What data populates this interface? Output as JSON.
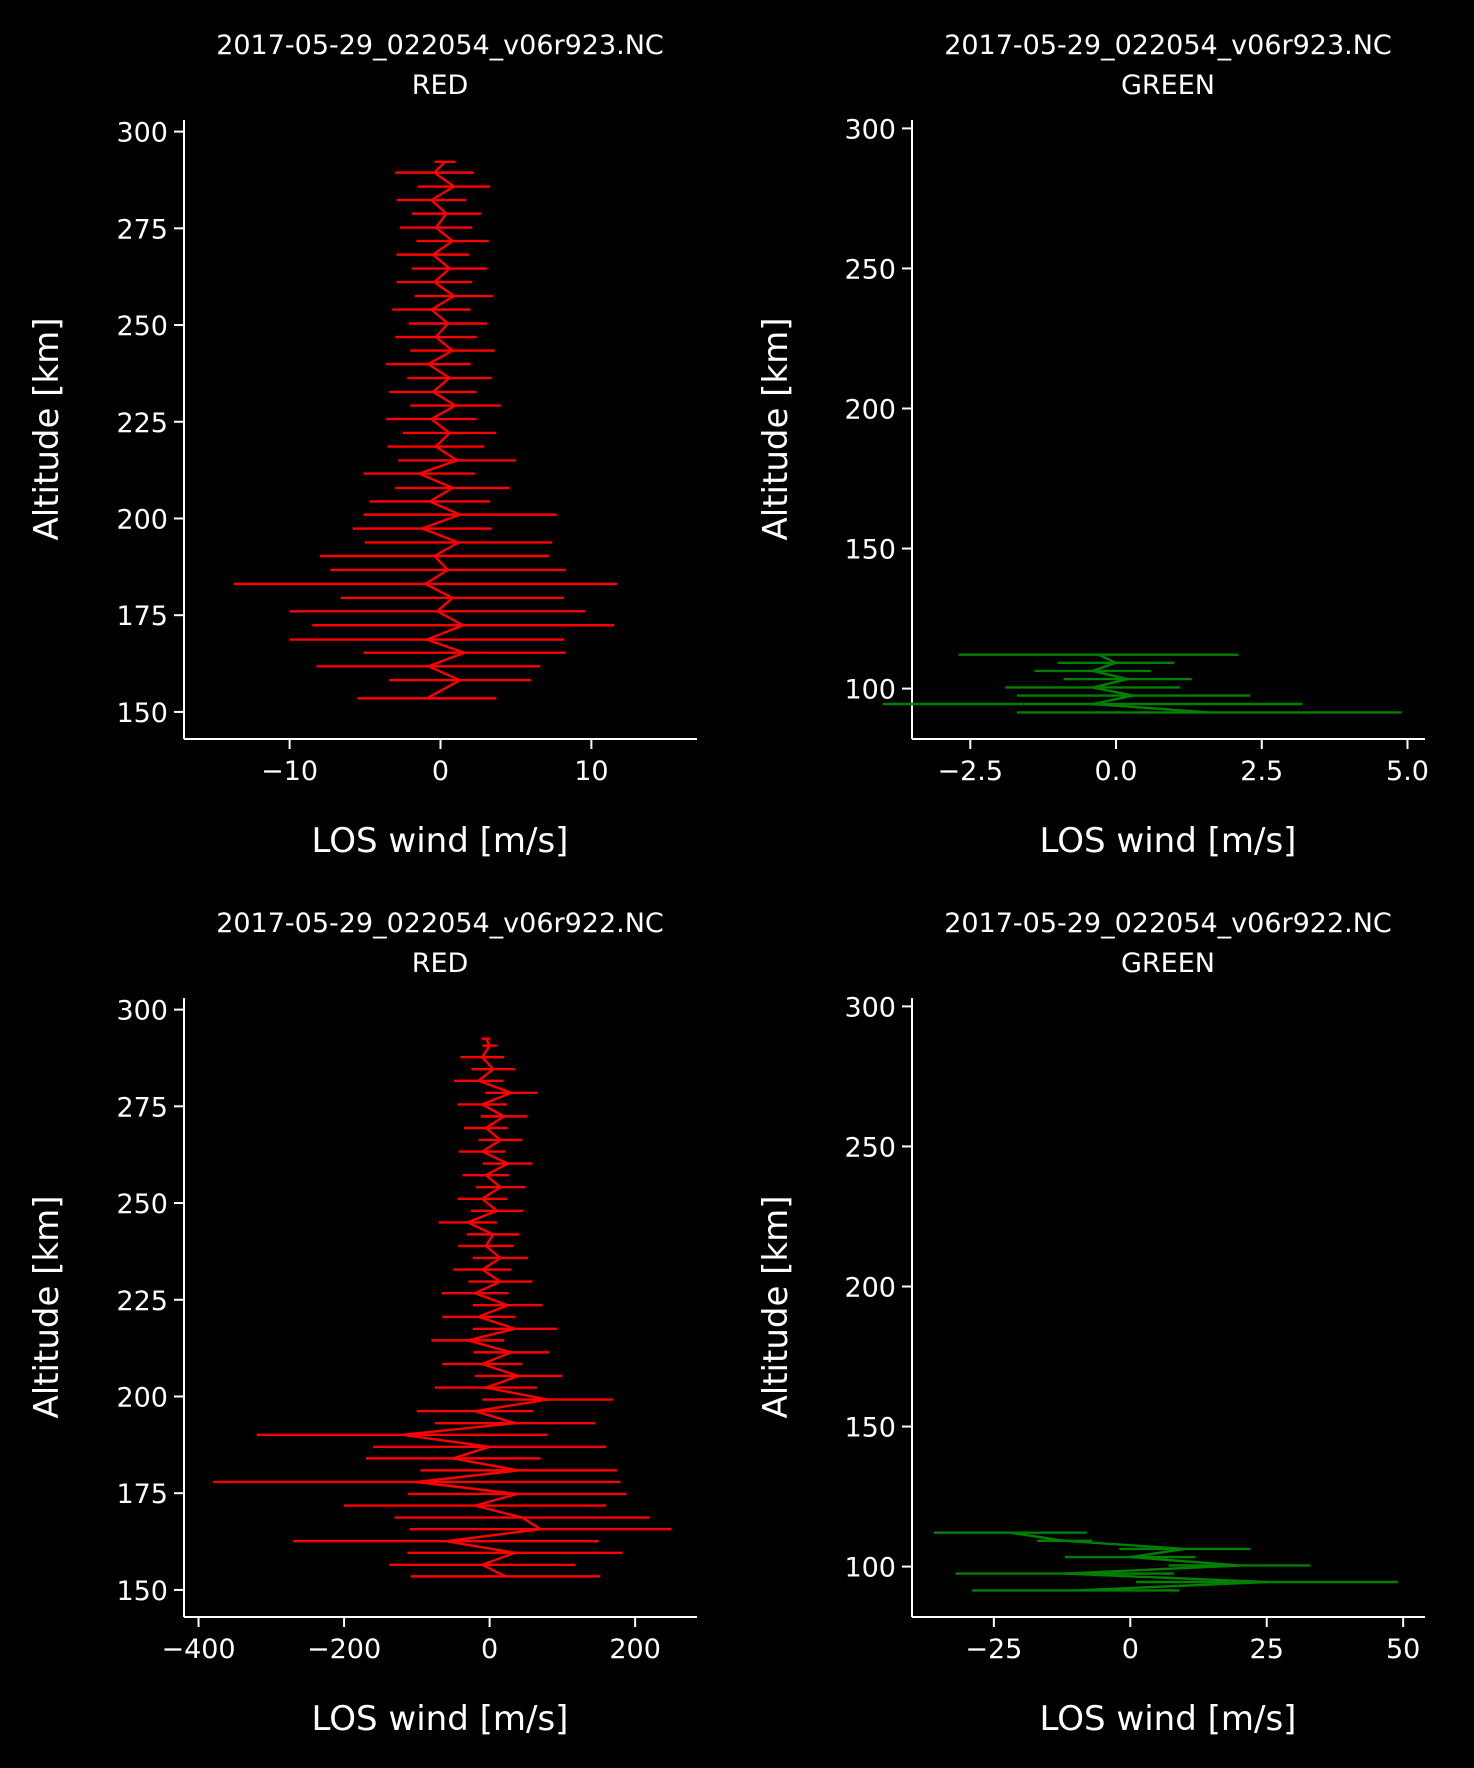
{
  "colors": {
    "background": "#000000",
    "text": "#ffffff",
    "RED": "#ff0000",
    "GREEN": "#008000"
  },
  "chart_data": [
    {
      "type": "line",
      "title": "2017-05-29_022054_v06r923.NC",
      "subtitle": "RED",
      "xlabel": "LOS wind [m/s]",
      "ylabel": "Altitude [km]",
      "xlim": [
        -17,
        17
      ],
      "ylim": [
        143,
        303
      ],
      "xticks": [
        -10,
        0,
        10
      ],
      "yticks": [
        150,
        175,
        200,
        225,
        250,
        275,
        300
      ],
      "xtick_labels": [
        "−10",
        "0",
        "10"
      ],
      "color": "#ff0000",
      "errorbars": true,
      "points": [
        [
          -0.9,
          153.5,
          4.6
        ],
        [
          1.3,
          158.2,
          4.7
        ],
        [
          -0.8,
          161.8,
          7.4
        ],
        [
          1.6,
          165.3,
          6.7
        ],
        [
          -0.9,
          168.7,
          9.1
        ],
        [
          1.5,
          172.4,
          10.0
        ],
        [
          -0.2,
          176.0,
          9.8
        ],
        [
          0.8,
          179.5,
          7.4
        ],
        [
          -1.0,
          183.1,
          12.7
        ],
        [
          0.5,
          186.7,
          7.8
        ],
        [
          -0.4,
          190.3,
          7.6
        ],
        [
          1.2,
          193.8,
          6.2
        ],
        [
          -1.2,
          197.4,
          4.6
        ],
        [
          1.3,
          201.0,
          6.4
        ],
        [
          -0.7,
          204.4,
          4.0
        ],
        [
          0.8,
          207.9,
          3.8
        ],
        [
          -1.4,
          211.6,
          3.7
        ],
        [
          1.1,
          215.0,
          3.9
        ],
        [
          -0.3,
          218.6,
          3.2
        ],
        [
          0.6,
          222.1,
          3.1
        ],
        [
          -0.6,
          225.7,
          3.0
        ],
        [
          1.0,
          229.2,
          3.0
        ],
        [
          -0.5,
          232.7,
          2.9
        ],
        [
          0.6,
          236.3,
          2.8
        ],
        [
          -0.8,
          239.9,
          2.8
        ],
        [
          0.8,
          243.4,
          2.8
        ],
        [
          -0.3,
          246.9,
          2.7
        ],
        [
          0.5,
          250.4,
          2.6
        ],
        [
          -0.6,
          254.0,
          2.6
        ],
        [
          0.9,
          257.5,
          2.6
        ],
        [
          -0.4,
          261.1,
          2.5
        ],
        [
          0.6,
          264.6,
          2.5
        ],
        [
          -0.5,
          268.2,
          2.4
        ],
        [
          0.8,
          271.7,
          2.4
        ],
        [
          -0.3,
          275.2,
          2.4
        ],
        [
          0.4,
          278.8,
          2.3
        ],
        [
          -0.6,
          282.3,
          2.3
        ],
        [
          0.9,
          285.8,
          2.4
        ],
        [
          -0.4,
          289.4,
          2.6
        ],
        [
          0.3,
          292.2,
          0.7
        ]
      ]
    },
    {
      "type": "line",
      "title": "2017-05-29_022054_v06r923.NC",
      "subtitle": "GREEN",
      "xlabel": "LOS wind [m/s]",
      "ylabel": "Altitude [km]",
      "xlim": [
        -3.5,
        5.3
      ],
      "ylim": [
        82,
        303
      ],
      "xticks": [
        -2.5,
        0.0,
        2.5,
        5.0
      ],
      "yticks": [
        100,
        150,
        200,
        250,
        300
      ],
      "xtick_labels": [
        "−2.5",
        "0.0",
        "2.5",
        "5.0"
      ],
      "color": "#008000",
      "errorbars": true,
      "points": [
        [
          1.6,
          91.5,
          3.3
        ],
        [
          -0.4,
          94.5,
          3.6
        ],
        [
          0.3,
          97.5,
          2.0
        ],
        [
          -0.4,
          100.4,
          1.5
        ],
        [
          0.2,
          103.4,
          1.1
        ],
        [
          -0.4,
          106.3,
          1.0
        ],
        [
          0.0,
          109.2,
          1.0
        ],
        [
          -0.3,
          112.1,
          2.4
        ]
      ]
    },
    {
      "type": "line",
      "title": "2017-05-29_022054_v06r922.NC",
      "subtitle": "RED",
      "xlabel": "LOS wind [m/s]",
      "ylabel": "Altitude [km]",
      "xlim": [
        -420,
        285
      ],
      "ylim": [
        143,
        303
      ],
      "xticks": [
        -400,
        -200,
        0,
        200
      ],
      "yticks": [
        150,
        175,
        200,
        225,
        250,
        275,
        300
      ],
      "xtick_labels": [
        "−400",
        "−200",
        "0",
        "200"
      ],
      "color": "#ff0000",
      "errorbars": true,
      "points": [
        [
          22,
          153.5,
          130
        ],
        [
          -10,
          156.5,
          128
        ],
        [
          35,
          159.6,
          148
        ],
        [
          -60,
          162.6,
          210
        ],
        [
          70,
          165.7,
          180
        ],
        [
          45,
          168.7,
          175
        ],
        [
          -20,
          171.8,
          180
        ],
        [
          38,
          174.8,
          150
        ],
        [
          -100,
          177.9,
          280
        ],
        [
          40,
          180.9,
          135
        ],
        [
          -50,
          184.0,
          120
        ],
        [
          0,
          187.0,
          160
        ],
        [
          -120,
          190.1,
          200
        ],
        [
          35,
          193.1,
          110
        ],
        [
          -20,
          196.2,
          80
        ],
        [
          80,
          199.2,
          90
        ],
        [
          -5,
          202.3,
          70
        ],
        [
          40,
          205.3,
          60
        ],
        [
          -10,
          208.4,
          55
        ],
        [
          30,
          211.4,
          52
        ],
        [
          -30,
          214.5,
          50
        ],
        [
          35,
          217.5,
          58
        ],
        [
          -15,
          220.6,
          50
        ],
        [
          25,
          223.6,
          48
        ],
        [
          -20,
          226.7,
          46
        ],
        [
          15,
          229.7,
          44
        ],
        [
          -10,
          232.8,
          40
        ],
        [
          15,
          235.8,
          38
        ],
        [
          -5,
          238.9,
          38
        ],
        [
          5,
          241.9,
          36
        ],
        [
          -30,
          245.0,
          40
        ],
        [
          10,
          248.0,
          36
        ],
        [
          -10,
          251.1,
          34
        ],
        [
          15,
          254.1,
          34
        ],
        [
          -5,
          257.2,
          32
        ],
        [
          25,
          260.2,
          34
        ],
        [
          -10,
          263.3,
          32
        ],
        [
          15,
          266.3,
          30
        ],
        [
          -5,
          269.4,
          30
        ],
        [
          20,
          272.4,
          32
        ],
        [
          -10,
          275.5,
          34
        ],
        [
          30,
          278.5,
          36
        ],
        [
          -15,
          281.6,
          34
        ],
        [
          5,
          284.6,
          30
        ],
        [
          -10,
          287.7,
          30
        ],
        [
          0,
          290.7,
          10
        ],
        [
          -5,
          292.5,
          6
        ]
      ]
    },
    {
      "type": "line",
      "title": "2017-05-29_022054_v06r922.NC",
      "subtitle": "GREEN",
      "xlabel": "LOS wind [m/s]",
      "ylabel": "Altitude [km]",
      "xlim": [
        -40,
        54
      ],
      "ylim": [
        82,
        303
      ],
      "xticks": [
        -25,
        0,
        25,
        50
      ],
      "yticks": [
        100,
        150,
        200,
        250,
        300
      ],
      "xtick_labels": [
        "−25",
        "0",
        "25",
        "50"
      ],
      "color": "#008000",
      "errorbars": true,
      "points": [
        [
          -10,
          91.5,
          19
        ],
        [
          25,
          94.5,
          24
        ],
        [
          -12,
          97.5,
          20
        ],
        [
          20,
          100.4,
          13
        ],
        [
          0,
          103.4,
          12
        ],
        [
          10,
          106.3,
          12
        ],
        [
          -12,
          109.2,
          5
        ],
        [
          -22,
          112.1,
          14
        ]
      ]
    }
  ]
}
